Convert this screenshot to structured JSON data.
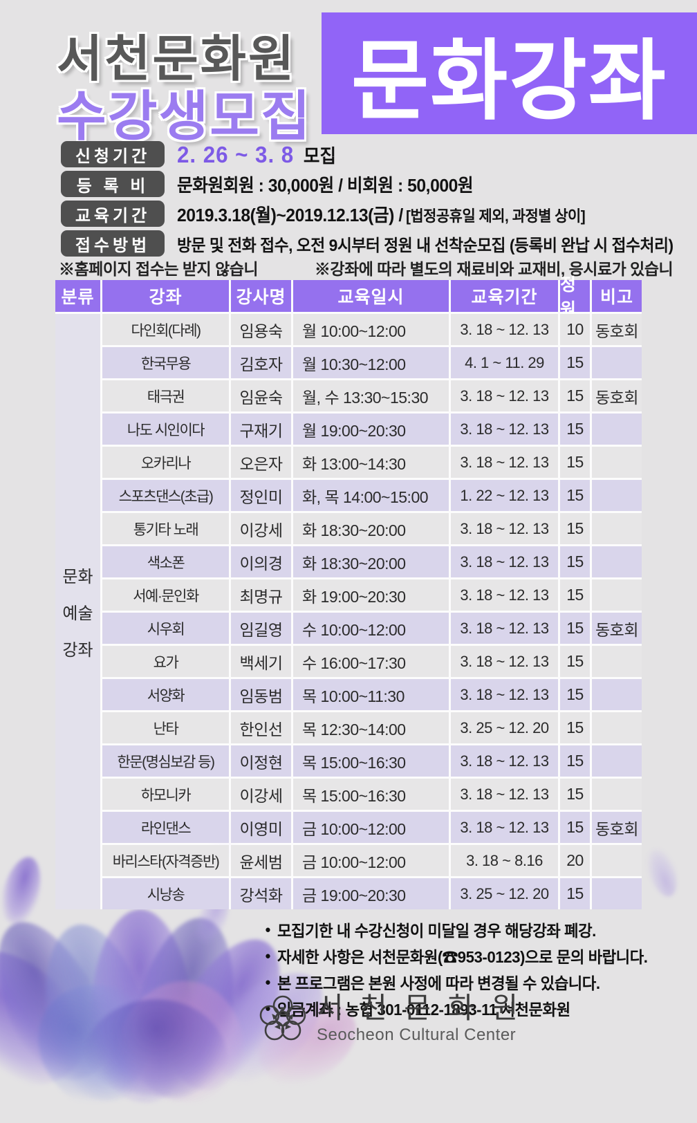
{
  "header": {
    "org_title": "서천문화원",
    "subtitle": "수강생모집",
    "banner": "문화강좌"
  },
  "info": {
    "rows": [
      {
        "label": "신청기간",
        "value_main": "2. 26 ~ 3. 8",
        "value_suffix": "모집"
      },
      {
        "label": "등 록 비",
        "value": "문화원회원 : 30,000원 / 비회원 : 50,000원"
      },
      {
        "label": "교육기간",
        "value": "2019.3.18(월)~2019.12.13(금) /",
        "value_small": "[법정공휴일 제외, 과정별 상이]"
      },
      {
        "label": "접수방법",
        "value": "방문 및 전화 접수, 오전 9시부터 정원 내 선착순모집 (등록비 완납 시 접수처리)"
      }
    ],
    "notes": [
      "※홈페이지 접수는 받지 않습니다.",
      "※강좌에 따라 별도의 재료비와 교재비, 응시료가 있습니다."
    ]
  },
  "table": {
    "headers": [
      "분류",
      "강좌",
      "강사명",
      "교육일시",
      "교육기간",
      "정원",
      "비고"
    ],
    "category": [
      "문화",
      "예술",
      "강좌"
    ],
    "rows": [
      {
        "course": "다인회(다례)",
        "instructor": "임용숙",
        "schedule": "월 10:00~12:00",
        "period": "3. 18 ~ 12. 13",
        "capacity": "10",
        "note": "동호회"
      },
      {
        "course": "한국무용",
        "instructor": "김호자",
        "schedule": "월 10:30~12:00",
        "period": "4. 1 ~  11. 29",
        "capacity": "15",
        "note": ""
      },
      {
        "course": "태극권",
        "instructor": "임윤숙",
        "schedule": "월, 수 13:30~15:30",
        "period": "3. 18 ~ 12. 13",
        "capacity": "15",
        "note": "동호회"
      },
      {
        "course": "나도 시인이다",
        "instructor": "구재기",
        "schedule": "월 19:00~20:30",
        "period": "3. 18 ~ 12. 13",
        "capacity": "15",
        "note": ""
      },
      {
        "course": "오카리나",
        "instructor": "오은자",
        "schedule": "화 13:00~14:30",
        "period": "3. 18 ~ 12. 13",
        "capacity": "15",
        "note": ""
      },
      {
        "course": "스포츠댄스(초급)",
        "instructor": "정인미",
        "schedule": "화, 목 14:00~15:00",
        "period": "1. 22 ~ 12. 13",
        "capacity": "15",
        "note": ""
      },
      {
        "course": "통기타 노래",
        "instructor": "이강세",
        "schedule": "화 18:30~20:00",
        "period": "3. 18 ~ 12. 13",
        "capacity": "15",
        "note": ""
      },
      {
        "course": "색소폰",
        "instructor": "이의경",
        "schedule": "화 18:30~20:00",
        "period": "3. 18 ~ 12. 13",
        "capacity": "15",
        "note": ""
      },
      {
        "course": "서예·문인화",
        "instructor": "최명규",
        "schedule": "화 19:00~20:30",
        "period": "3. 18 ~ 12. 13",
        "capacity": "15",
        "note": ""
      },
      {
        "course": "시우회",
        "instructor": "임길영",
        "schedule": "수 10:00~12:00",
        "period": "3. 18 ~ 12. 13",
        "capacity": "15",
        "note": "동호회"
      },
      {
        "course": "요가",
        "instructor": "백세기",
        "schedule": "수 16:00~17:30",
        "period": "3. 18 ~ 12. 13",
        "capacity": "15",
        "note": ""
      },
      {
        "course": "서양화",
        "instructor": "임동범",
        "schedule": "목 10:00~11:30",
        "period": "3. 18 ~ 12. 13",
        "capacity": "15",
        "note": ""
      },
      {
        "course": "난타",
        "instructor": "한인선",
        "schedule": "목 12:30~14:00",
        "period": "3. 25 ~ 12. 20",
        "capacity": "15",
        "note": ""
      },
      {
        "course": "한문(명심보감 등)",
        "instructor": "이정현",
        "schedule": "목 15:00~16:30",
        "period": "3. 18 ~ 12. 13",
        "capacity": "15",
        "note": ""
      },
      {
        "course": "하모니카",
        "instructor": "이강세",
        "schedule": "목 15:00~16:30",
        "period": "3. 18 ~ 12. 13",
        "capacity": "15",
        "note": ""
      },
      {
        "course": "라인댄스",
        "instructor": "이영미",
        "schedule": "금 10:00~12:00",
        "period": "3. 18 ~ 12. 13",
        "capacity": "15",
        "note": "동호회"
      },
      {
        "course": "바리스타(자격증반)",
        "instructor": "윤세범",
        "schedule": "금 10:00~12:00",
        "period": "3. 18 ~ 8.16",
        "capacity": "20",
        "note": ""
      },
      {
        "course": "시낭송",
        "instructor": "강석화",
        "schedule": "금 19:00~20:30",
        "period": "3. 25 ~ 12. 20",
        "capacity": "15",
        "note": ""
      }
    ]
  },
  "bullets": {
    "bullet_char": "●",
    "items": [
      "모집기한 내 수강신청이 미달일 경우 해당강좌 폐강.",
      "자세한 사항은 서천문화원(☎953-0123)으로 문의 바랍니다.",
      "본 프로그램은 본원 사정에 따라 변경될 수 있습니다.",
      "입금계좌 : 농협 301-0112-1893-11 서천문화원"
    ]
  },
  "footer": {
    "kor": "서 천 문 화 원",
    "eng": "Seocheon Cultural Center"
  },
  "colors": {
    "page_bg": "#e4e3e4",
    "banner_purple": "#9164f7",
    "table_header_purple": "#9571ee",
    "subtitle_purple": "#9b7cf0",
    "accent_purple": "#7d5ae6",
    "label_pill_gray": "#4f4f4f",
    "row_gray": "#e7e6e7",
    "row_lavender": "#d9d5eb"
  }
}
